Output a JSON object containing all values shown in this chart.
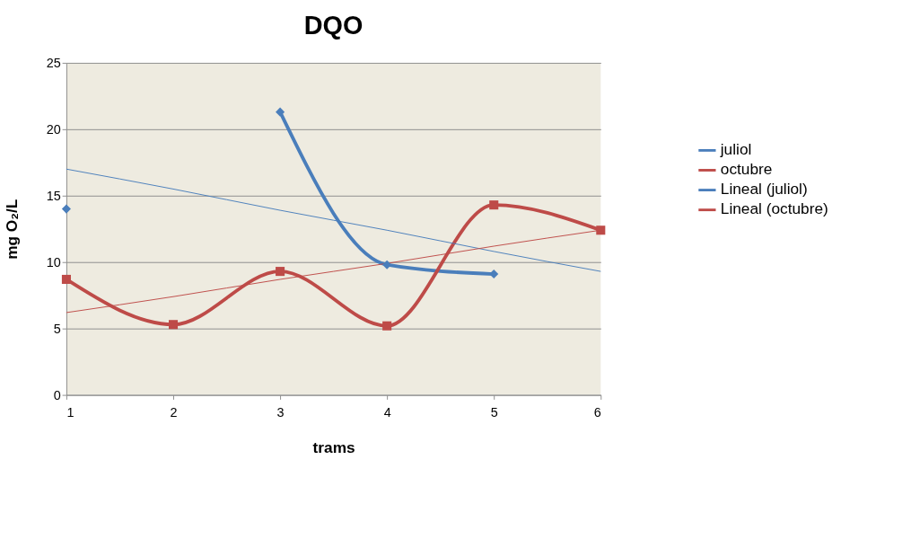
{
  "chart_data": {
    "type": "line",
    "title": "DQO",
    "xlabel": "trams",
    "ylabel": "mg O₂/L",
    "x": [
      1,
      2,
      3,
      4,
      5,
      6
    ],
    "xlim": [
      1,
      6
    ],
    "xticks": [
      1,
      2,
      3,
      4,
      5,
      6
    ],
    "ylim": [
      0,
      25
    ],
    "yticks": [
      0,
      5,
      10,
      15,
      20,
      25
    ],
    "grid": "y",
    "legend": "right",
    "line_style": "solid",
    "series": [
      {
        "name": "juliol",
        "color": "#4a7ebb",
        "marker": "diamond",
        "values": [
          14.0,
          null,
          21.3,
          9.8,
          9.1,
          null
        ]
      },
      {
        "name": "octubre",
        "color": "#be4b48",
        "marker": "square",
        "values": [
          8.7,
          5.3,
          9.3,
          5.2,
          14.3,
          12.4
        ]
      },
      {
        "name": "Lineal (juliol)",
        "color": "#4a7ebb",
        "marker": "none",
        "type": "line",
        "values": [
          17.0,
          15.5,
          13.9,
          12.4,
          10.8,
          9.3
        ]
      },
      {
        "name": "Lineal (octubre)",
        "color": "#be4b48",
        "marker": "none",
        "type": "line",
        "values": [
          6.2,
          7.4,
          8.7,
          9.9,
          11.2,
          12.4
        ]
      }
    ]
  }
}
